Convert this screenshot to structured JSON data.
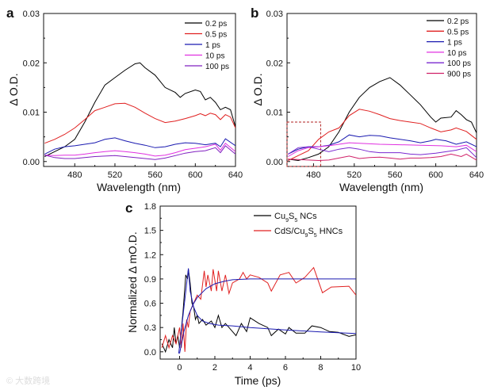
{
  "watermark": "© 大数跨境",
  "chart_data": [
    {
      "panel": "a",
      "type": "line",
      "xlabel": "Wavelength (nm)",
      "ylabel": "Δ O.D.",
      "xlim": [
        449,
        640
      ],
      "ylim": [
        -0.001,
        0.03
      ],
      "xticks": [
        480,
        520,
        560,
        600,
        640
      ],
      "yticks": [
        0.0,
        0.01,
        0.02,
        0.03
      ],
      "ytick_labels": [
        "0.00",
        "0.01",
        "0.02",
        "0.03"
      ],
      "legend_position": "top-right",
      "series": [
        {
          "name": "0.2 ps",
          "color": "#000000",
          "x": [
            450,
            460,
            470,
            480,
            490,
            500,
            510,
            520,
            530,
            540,
            545,
            550,
            560,
            570,
            580,
            585,
            590,
            600,
            605,
            610,
            615,
            620,
            625,
            630,
            635,
            640
          ],
          "y": [
            0.001,
            0.002,
            0.003,
            0.0045,
            0.008,
            0.012,
            0.0155,
            0.017,
            0.0185,
            0.0198,
            0.02,
            0.019,
            0.0175,
            0.015,
            0.014,
            0.013,
            0.0138,
            0.0145,
            0.0142,
            0.0125,
            0.013,
            0.012,
            0.0105,
            0.011,
            0.0105,
            0.007
          ]
        },
        {
          "name": "0.5 ps",
          "color": "#e02020",
          "x": [
            450,
            460,
            470,
            480,
            490,
            500,
            510,
            520,
            530,
            540,
            550,
            560,
            570,
            580,
            590,
            600,
            605,
            610,
            615,
            620,
            625,
            630,
            635,
            640
          ],
          "y": [
            0.0037,
            0.0045,
            0.0055,
            0.0068,
            0.0085,
            0.0103,
            0.011,
            0.0117,
            0.0118,
            0.011,
            0.0098,
            0.0087,
            0.0079,
            0.0082,
            0.0087,
            0.0093,
            0.0097,
            0.0093,
            0.0098,
            0.0095,
            0.0085,
            0.0095,
            0.009,
            0.0068
          ]
        },
        {
          "name": "1 ps",
          "color": "#1a1ab0",
          "x": [
            450,
            460,
            470,
            480,
            490,
            500,
            510,
            520,
            530,
            540,
            550,
            560,
            570,
            580,
            590,
            600,
            610,
            620,
            625,
            630,
            640
          ],
          "y": [
            0.0015,
            0.0025,
            0.003,
            0.0032,
            0.0035,
            0.0038,
            0.0045,
            0.0048,
            0.0042,
            0.0037,
            0.0033,
            0.0028,
            0.003,
            0.0035,
            0.0038,
            0.0037,
            0.0034,
            0.0037,
            0.003,
            0.0046,
            0.0032
          ]
        },
        {
          "name": "10 ps",
          "color": "#e030e0",
          "x": [
            450,
            460,
            470,
            480,
            490,
            500,
            510,
            520,
            530,
            540,
            550,
            560,
            570,
            580,
            590,
            600,
            610,
            620,
            625,
            630,
            640
          ],
          "y": [
            0.0013,
            0.0012,
            0.0013,
            0.0013,
            0.0015,
            0.0018,
            0.002,
            0.0022,
            0.002,
            0.0018,
            0.0015,
            0.0011,
            0.0013,
            0.0018,
            0.0024,
            0.0027,
            0.003,
            0.0035,
            0.0023,
            0.0037,
            0.002
          ]
        },
        {
          "name": "100 ps",
          "color": "#8020c0",
          "x": [
            450,
            460,
            470,
            480,
            490,
            500,
            510,
            520,
            530,
            540,
            550,
            560,
            570,
            580,
            590,
            600,
            610,
            620,
            625,
            630,
            640
          ],
          "y": [
            0.0013,
            0.0008,
            0.0006,
            0.0006,
            0.0008,
            0.001,
            0.0011,
            0.0012,
            0.001,
            0.0008,
            0.0006,
            0.0004,
            0.0007,
            0.0012,
            0.0017,
            0.002,
            0.0022,
            0.0028,
            0.0018,
            0.0032,
            0.0015
          ]
        }
      ]
    },
    {
      "panel": "b",
      "type": "line",
      "xlabel": "Wavelength (nm)",
      "ylabel": "Δ O.D.",
      "xlim": [
        454,
        640
      ],
      "ylim": [
        -0.001,
        0.03
      ],
      "xticks": [
        480,
        520,
        560,
        600,
        640
      ],
      "yticks": [
        0.0,
        0.01,
        0.02,
        0.03
      ],
      "ytick_labels": [
        "0.00",
        "0.01",
        "0.02",
        "0.03"
      ],
      "legend_position": "top-right",
      "highlight_box": {
        "x": [
          454,
          487
        ],
        "y": [
          -0.001,
          0.008
        ],
        "color": "#b02020"
      },
      "series": [
        {
          "name": "0.2 ps",
          "color": "#000000",
          "x": [
            455,
            465,
            475,
            485,
            495,
            505,
            515,
            525,
            535,
            545,
            555,
            565,
            575,
            585,
            595,
            600,
            605,
            615,
            620,
            625,
            630,
            635,
            640
          ],
          "y": [
            0.0005,
            0.0002,
            0.0008,
            0.0015,
            0.003,
            0.006,
            0.01,
            0.013,
            0.015,
            0.0162,
            0.017,
            0.0155,
            0.0135,
            0.0115,
            0.009,
            0.008,
            0.0088,
            0.009,
            0.0103,
            0.0095,
            0.0085,
            0.008,
            0.0058
          ]
        },
        {
          "name": "0.5 ps",
          "color": "#e02020",
          "x": [
            455,
            465,
            475,
            485,
            495,
            505,
            515,
            525,
            535,
            545,
            555,
            565,
            575,
            585,
            595,
            605,
            615,
            620,
            630,
            640
          ],
          "y": [
            0.0002,
            0.0012,
            0.0022,
            0.0045,
            0.006,
            0.0068,
            0.0093,
            0.0106,
            0.0102,
            0.0095,
            0.0087,
            0.0083,
            0.008,
            0.0077,
            0.0068,
            0.006,
            0.0064,
            0.0068,
            0.0061,
            0.0045
          ]
        },
        {
          "name": "1 ps",
          "color": "#1a1ab0",
          "x": [
            455,
            465,
            475,
            485,
            495,
            505,
            515,
            525,
            535,
            545,
            555,
            565,
            575,
            585,
            595,
            600,
            610,
            620,
            630,
            640
          ],
          "y": [
            0.0015,
            0.0025,
            0.003,
            0.003,
            0.0033,
            0.004,
            0.0054,
            0.005,
            0.0053,
            0.0052,
            0.0048,
            0.0045,
            0.0042,
            0.0038,
            0.0042,
            0.0045,
            0.0042,
            0.0035,
            0.004,
            0.003
          ]
        },
        {
          "name": "10 ps",
          "color": "#e030e0",
          "x": [
            455,
            465,
            475,
            485,
            495,
            505,
            515,
            525,
            545,
            565,
            585,
            605,
            620,
            630,
            640
          ],
          "y": [
            0.001,
            0.0022,
            0.0028,
            0.003,
            0.0032,
            0.0035,
            0.0038,
            0.0037,
            0.0035,
            0.0034,
            0.0033,
            0.0032,
            0.003,
            0.0033,
            0.002
          ]
        },
        {
          "name": "100 ps",
          "color": "#7a28d0",
          "x": [
            455,
            465,
            475,
            485,
            495,
            505,
            515,
            525,
            535,
            545,
            565,
            575,
            585,
            600,
            620,
            630,
            640
          ],
          "y": [
            0.0015,
            0.0028,
            0.003,
            0.0025,
            0.002,
            0.0025,
            0.0028,
            0.0025,
            0.002,
            0.0018,
            0.0018,
            0.0015,
            0.0014,
            0.0017,
            0.0023,
            0.0028,
            0.0008
          ]
        },
        {
          "name": "900 ps",
          "color": "#d02068",
          "x": [
            455,
            465,
            475,
            485,
            495,
            505,
            515,
            525,
            535,
            545,
            555,
            565,
            575,
            585,
            595,
            605,
            615,
            625,
            630,
            640
          ],
          "y": [
            0.0005,
            0.0004,
            0.0003,
            0.0002,
            0.0003,
            0.0007,
            0.0011,
            0.0006,
            0.0008,
            0.0009,
            0.0007,
            0.0005,
            0.0007,
            0.0007,
            0.0008,
            0.001,
            0.0015,
            0.001,
            0.0015,
            0.0003
          ]
        }
      ]
    },
    {
      "panel": "c",
      "type": "line",
      "xlabel": "Time (ps)",
      "ylabel": "Normalized Δ mO.D.",
      "xlim": [
        -1.1,
        10
      ],
      "ylim": [
        -0.09,
        1.8
      ],
      "xticks": [
        0,
        2,
        4,
        6,
        8,
        10
      ],
      "yticks": [
        0.0,
        0.3,
        0.6,
        0.9,
        1.2,
        1.5,
        1.8
      ],
      "ytick_labels": [
        "0.0",
        "0.3",
        "0.6",
        "0.9",
        "1.2",
        "1.5",
        "1.8"
      ],
      "legend_position": "top-right",
      "series": [
        {
          "name": "Cu9S5 NCs",
          "label_parts": [
            "Cu",
            "9",
            "S",
            "5",
            " NCs"
          ],
          "color": "#000000",
          "x": [
            -1,
            -0.8,
            -0.6,
            -0.4,
            -0.3,
            -0.2,
            -0.1,
            0,
            0.2,
            0.35,
            0.45,
            0.5,
            0.6,
            0.7,
            0.8,
            0.9,
            1.0,
            1.1,
            1.3,
            1.5,
            1.8,
            2.0,
            2.2,
            2.4,
            2.6,
            2.8,
            3.2,
            3.5,
            3.8,
            4.0,
            4.5,
            5.0,
            5.2,
            5.6,
            6.0,
            6.2,
            6.6,
            7.1,
            7.5,
            8.0,
            8.5,
            9.0,
            9.6,
            10
          ],
          "y": [
            0.1,
            0.0,
            0.15,
            0.05,
            0.3,
            0.1,
            0.2,
            0.05,
            0.5,
            0.95,
            0.9,
            1.02,
            0.85,
            0.6,
            0.55,
            0.4,
            0.45,
            0.35,
            0.4,
            0.33,
            0.38,
            0.3,
            0.45,
            0.3,
            0.35,
            0.3,
            0.2,
            0.35,
            0.25,
            0.42,
            0.35,
            0.3,
            0.2,
            0.28,
            0.22,
            0.3,
            0.23,
            0.23,
            0.32,
            0.3,
            0.25,
            0.24,
            0.19,
            0.21
          ]
        },
        {
          "name": "CdS/Cu9S5 HNCs",
          "label_parts": [
            "CdS/Cu",
            "9",
            "S",
            "5",
            " HNCs"
          ],
          "color": "#e02020",
          "x": [
            -1,
            -0.8,
            -0.6,
            -0.4,
            -0.2,
            0,
            0.1,
            0.2,
            0.3,
            0.4,
            0.5,
            0.6,
            0.8,
            1.0,
            1.2,
            1.4,
            1.5,
            1.6,
            1.8,
            1.9,
            2.1,
            2.2,
            2.4,
            2.6,
            2.8,
            3.0,
            3.4,
            3.6,
            3.8,
            4.0,
            4.5,
            5.0,
            5.2,
            5.7,
            6.2,
            6.6,
            7.1,
            7.6,
            8.1,
            8.6,
            9.6,
            10
          ],
          "y": [
            0.05,
            0.2,
            0.05,
            0.2,
            0.1,
            0.3,
            0.05,
            0.35,
            0.0,
            0.4,
            0.3,
            0.5,
            0.6,
            0.7,
            0.65,
            1.0,
            0.8,
            0.95,
            0.75,
            1.02,
            0.75,
            1.0,
            0.75,
            0.95,
            0.72,
            0.85,
            0.9,
            0.98,
            0.9,
            0.95,
            0.92,
            0.85,
            0.75,
            0.95,
            0.98,
            0.85,
            0.92,
            1.04,
            0.73,
            0.8,
            0.81,
            0.7
          ]
        },
        {
          "name": "rise fit",
          "color": "#1a1ab0",
          "fit": true,
          "x": [
            0,
            0.25,
            0.5,
            0.75,
            1,
            1.5,
            2,
            2.5,
            3,
            4,
            10
          ],
          "y": [
            -0.02,
            0.25,
            0.45,
            0.58,
            0.67,
            0.78,
            0.84,
            0.87,
            0.89,
            0.9,
            0.9
          ]
        },
        {
          "name": "decay fit",
          "color": "#1a1ab0",
          "fit": true,
          "x": [
            -0.05,
            0.5,
            0.6,
            0.8,
            1,
            1.3,
            1.7,
            2.2,
            3,
            4,
            6,
            8,
            10
          ],
          "y": [
            -0.02,
            1.03,
            0.75,
            0.55,
            0.45,
            0.38,
            0.35,
            0.33,
            0.32,
            0.3,
            0.27,
            0.245,
            0.225
          ]
        }
      ]
    }
  ]
}
